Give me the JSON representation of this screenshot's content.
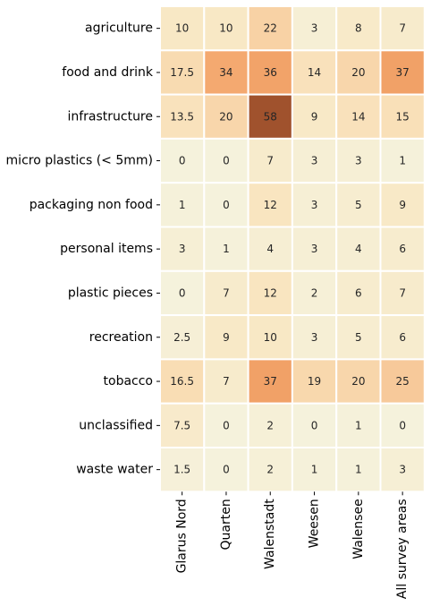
{
  "chart_data": {
    "type": "heatmap",
    "rows": [
      "agriculture",
      "food and drink",
      "infrastructure",
      "micro plastics (< 5mm)",
      "packaging non food",
      "personal items",
      "plastic pieces",
      "recreation",
      "tobacco",
      "unclassified",
      "waste water"
    ],
    "columns": [
      "Glarus Nord",
      "Quarten",
      "Walenstadt",
      "Weesen",
      "Walensee",
      "All survey areas"
    ],
    "labels": [
      [
        "10",
        "10",
        "22",
        "3",
        "8",
        "7"
      ],
      [
        "17.5",
        "34",
        "36",
        "14",
        "20",
        "37"
      ],
      [
        "13.5",
        "20",
        "58",
        "9",
        "14",
        "15"
      ],
      [
        "0",
        "0",
        "7",
        "3",
        "3",
        "1"
      ],
      [
        "1",
        "0",
        "12",
        "3",
        "5",
        "9"
      ],
      [
        "3",
        "1",
        "4",
        "3",
        "4",
        "6"
      ],
      [
        "0",
        "7",
        "12",
        "2",
        "6",
        "7"
      ],
      [
        "2.5",
        "9",
        "10",
        "3",
        "5",
        "6"
      ],
      [
        "16.5",
        "7",
        "37",
        "19",
        "20",
        "25"
      ],
      [
        "7.5",
        "0",
        "2",
        "0",
        "1",
        "0"
      ],
      [
        "1.5",
        "0",
        "2",
        "1",
        "1",
        "3"
      ]
    ],
    "values": [
      [
        10,
        10,
        22,
        3,
        8,
        7
      ],
      [
        17.5,
        34,
        36,
        14,
        20,
        37
      ],
      [
        13.5,
        20,
        58,
        9,
        14,
        15
      ],
      [
        0,
        0,
        7,
        3,
        3,
        1
      ],
      [
        1,
        0,
        12,
        3,
        5,
        9
      ],
      [
        3,
        1,
        4,
        3,
        4,
        6
      ],
      [
        0,
        7,
        12,
        2,
        6,
        7
      ],
      [
        2.5,
        9,
        10,
        3,
        5,
        6
      ],
      [
        16.5,
        7,
        37,
        19,
        20,
        25
      ],
      [
        7.5,
        0,
        2,
        0,
        1,
        0
      ],
      [
        1.5,
        0,
        2,
        1,
        1,
        3
      ]
    ],
    "colormap": [
      "#f5f2dc",
      "#f9e6c1",
      "#f8d0a2",
      "#f4a66c",
      "#e58a51",
      "#a0522d"
    ],
    "vmin": 0,
    "vmax": 58,
    "cell_border_color": "#ffffff",
    "title": "",
    "xlabel": "",
    "ylabel": ""
  }
}
